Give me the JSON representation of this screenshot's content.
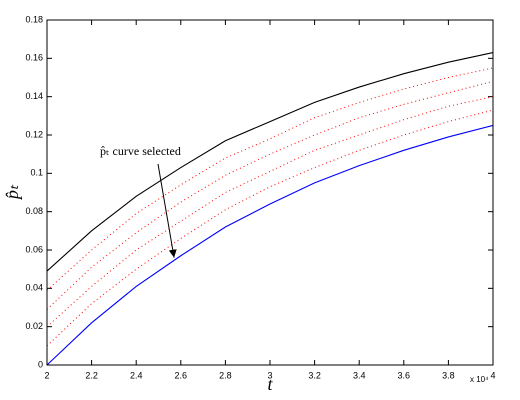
{
  "chart_data": {
    "type": "line",
    "x_label": "t",
    "y_label": "p̂ₜ",
    "x_multiplier": "x 10⁴",
    "x": [
      2,
      2.2,
      2.4,
      2.6,
      2.8,
      3,
      3.2,
      3.4,
      3.6,
      3.8,
      4
    ],
    "series": [
      {
        "color": "#ff0000",
        "style": "dotted",
        "values": [
          0.01,
          0.032,
          0.05,
          0.066,
          0.081,
          0.093,
          0.103,
          0.112,
          0.12,
          0.127,
          0.133
        ]
      },
      {
        "color": "#ff0000",
        "style": "dotted",
        "values": [
          0.02,
          0.041,
          0.06,
          0.075,
          0.09,
          0.101,
          0.112,
          0.12,
          0.128,
          0.135,
          0.14
        ]
      },
      {
        "color": "#ff0000",
        "style": "dotted",
        "values": [
          0.029,
          0.051,
          0.069,
          0.085,
          0.099,
          0.11,
          0.12,
          0.129,
          0.136,
          0.142,
          0.148
        ]
      },
      {
        "color": "#ff0000",
        "style": "dotted",
        "values": [
          0.039,
          0.06,
          0.079,
          0.094,
          0.108,
          0.118,
          0.129,
          0.137,
          0.144,
          0.15,
          0.155
        ]
      },
      {
        "color": "#0000ff",
        "style": "solid",
        "values": [
          0,
          0,
          0,
          0,
          0,
          0,
          0,
          0,
          0,
          0,
          0
        ]
      },
      {
        "color": "#0000ff",
        "style": "solid",
        "values": [
          0,
          0.022,
          0.041,
          0.057,
          0.072,
          0.084,
          0.095,
          0.104,
          0.112,
          0.119,
          0.125
        ]
      },
      {
        "color": "#000000",
        "style": "solid",
        "values": [
          0.049,
          0.07,
          0.088,
          0.103,
          0.117,
          0.127,
          0.137,
          0.145,
          0.152,
          0.158,
          0.163
        ]
      }
    ],
    "xlim": [
      2,
      4
    ],
    "ylim": [
      0,
      0.18
    ],
    "xticks": [
      2,
      2.2,
      2.4,
      2.6,
      2.8,
      3,
      3.2,
      3.4,
      3.6,
      3.8,
      4
    ],
    "yticks": [
      0,
      0.02,
      0.04,
      0.06,
      0.08,
      0.1,
      0.12,
      0.14,
      0.16,
      0.18
    ],
    "grid": false,
    "annotation": {
      "text": "p̂ₜ curve selected",
      "xy": [
        2.57,
        0.056
      ]
    }
  }
}
